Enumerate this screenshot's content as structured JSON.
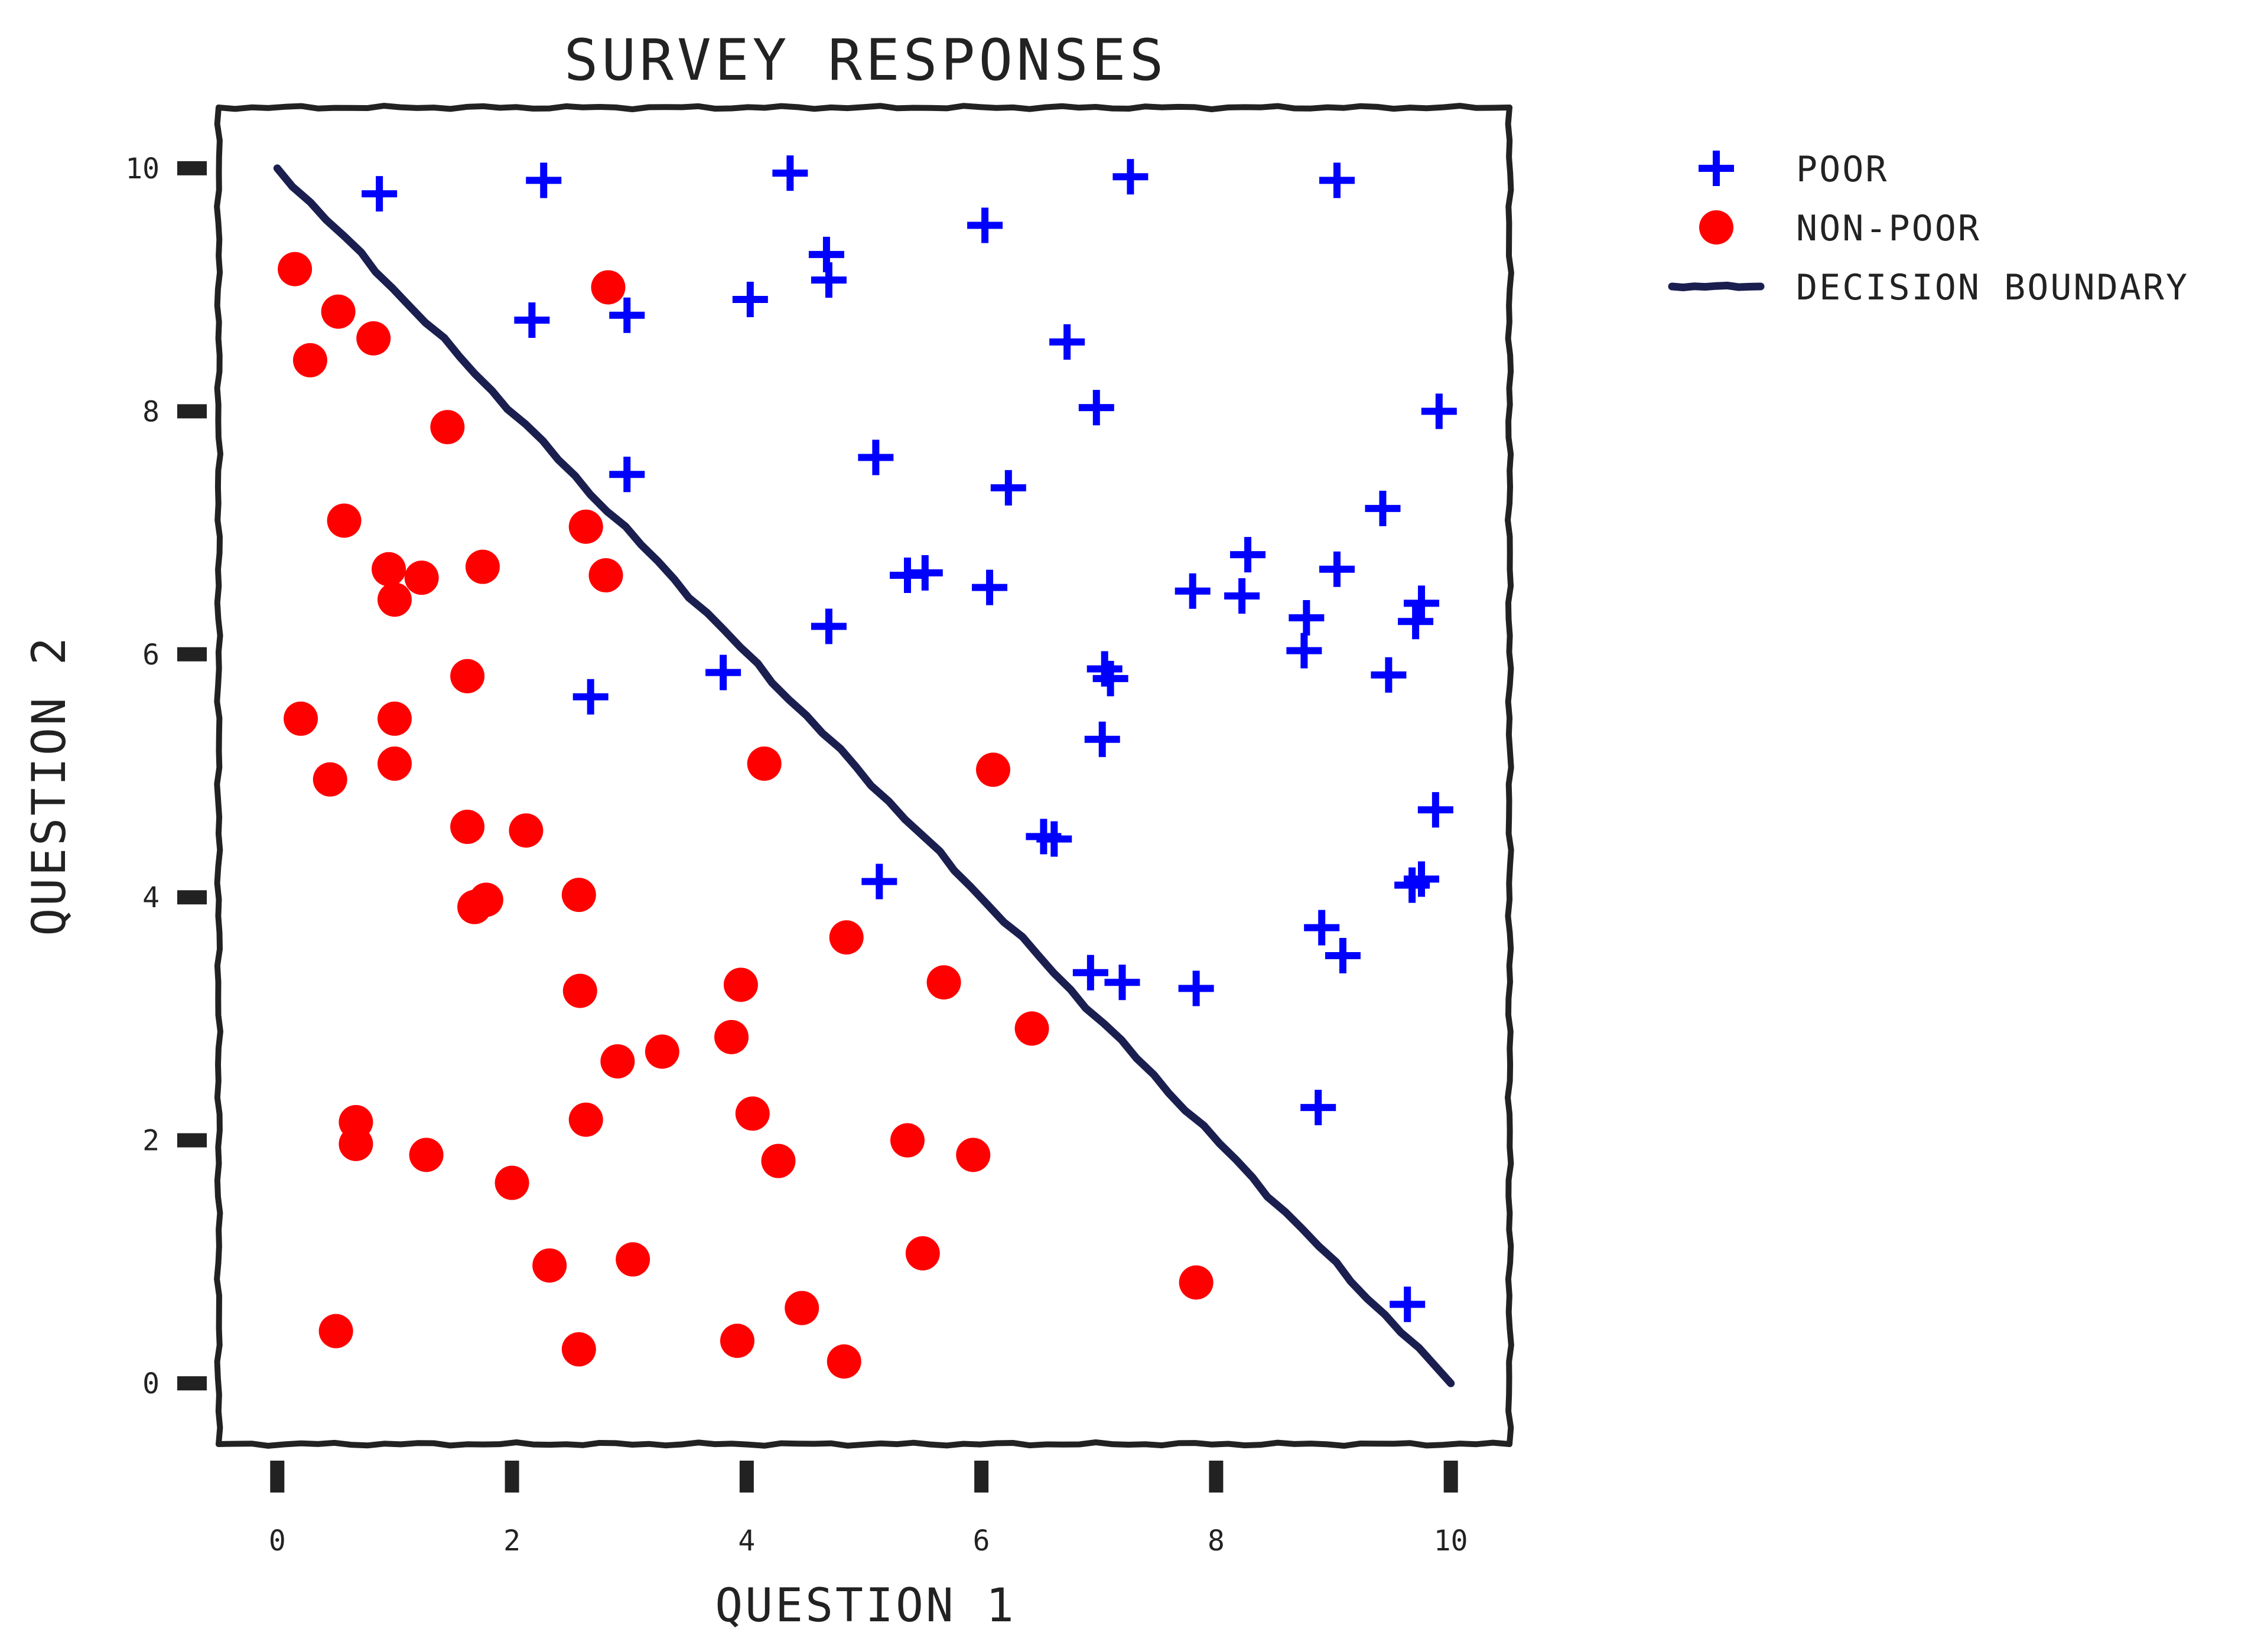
{
  "colors": {
    "poor": "#0000ff",
    "non_poor": "#ff0000",
    "boundary": "#1a1f4f",
    "frame": "#222222"
  },
  "chart_data": {
    "type": "scatter",
    "title": "SURVEY RESPONSES",
    "xlabel": "QUESTION 1",
    "ylabel": "QUESTION 2",
    "xlim": [
      -0.5,
      10.5
    ],
    "ylim": [
      -0.5,
      10.5
    ],
    "xticks": [
      0,
      2,
      4,
      6,
      8,
      10
    ],
    "yticks": [
      0,
      2,
      4,
      6,
      8,
      10
    ],
    "grid": false,
    "legend_position": "outside-top-right",
    "series": [
      {
        "name": "POOR",
        "marker": "plus",
        "color": "#0000ff",
        "points": [
          [
            0.87,
            9.79
          ],
          [
            2.27,
            9.9
          ],
          [
            4.37,
            9.96
          ],
          [
            7.27,
            9.93
          ],
          [
            9.03,
            9.9
          ],
          [
            4.68,
            9.29
          ],
          [
            4.7,
            9.08
          ],
          [
            6.03,
            9.53
          ],
          [
            2.17,
            8.75
          ],
          [
            2.98,
            8.79
          ],
          [
            4.03,
            8.92
          ],
          [
            6.73,
            8.57
          ],
          [
            6.98,
            8.03
          ],
          [
            9.9,
            8.0
          ],
          [
            5.1,
            7.62
          ],
          [
            2.98,
            7.48
          ],
          [
            6.23,
            7.37
          ],
          [
            9.42,
            7.2
          ],
          [
            5.37,
            6.65
          ],
          [
            5.52,
            6.67
          ],
          [
            6.07,
            6.55
          ],
          [
            8.27,
            6.82
          ],
          [
            7.8,
            6.52
          ],
          [
            8.22,
            6.48
          ],
          [
            9.03,
            6.7
          ],
          [
            9.75,
            6.42
          ],
          [
            9.7,
            6.27
          ],
          [
            8.77,
            6.3
          ],
          [
            8.75,
            6.03
          ],
          [
            4.7,
            6.23
          ],
          [
            3.8,
            5.85
          ],
          [
            7.05,
            5.88
          ],
          [
            7.1,
            5.8
          ],
          [
            9.47,
            5.83
          ],
          [
            2.67,
            5.65
          ],
          [
            7.03,
            5.3
          ],
          [
            9.87,
            4.72
          ],
          [
            6.53,
            4.5
          ],
          [
            6.62,
            4.48
          ],
          [
            5.13,
            4.13
          ],
          [
            9.67,
            4.1
          ],
          [
            9.75,
            4.15
          ],
          [
            8.9,
            3.75
          ],
          [
            9.08,
            3.52
          ],
          [
            6.93,
            3.38
          ],
          [
            7.2,
            3.3
          ],
          [
            7.83,
            3.25
          ],
          [
            8.87,
            2.27
          ],
          [
            9.63,
            0.65
          ]
        ]
      },
      {
        "name": "NON-POOR",
        "marker": "circle",
        "color": "#ff0000",
        "points": [
          [
            0.15,
            9.17
          ],
          [
            0.52,
            8.82
          ],
          [
            0.82,
            8.6
          ],
          [
            0.28,
            8.42
          ],
          [
            2.82,
            9.02
          ],
          [
            1.45,
            7.87
          ],
          [
            0.57,
            7.1
          ],
          [
            2.63,
            7.05
          ],
          [
            0.95,
            6.7
          ],
          [
            1.23,
            6.63
          ],
          [
            1.75,
            6.72
          ],
          [
            1.0,
            6.45
          ],
          [
            2.8,
            6.65
          ],
          [
            1.62,
            5.82
          ],
          [
            0.2,
            5.47
          ],
          [
            1.0,
            5.47
          ],
          [
            1.0,
            5.1
          ],
          [
            4.15,
            5.1
          ],
          [
            6.1,
            5.05
          ],
          [
            0.45,
            4.97
          ],
          [
            1.62,
            4.58
          ],
          [
            2.12,
            4.55
          ],
          [
            1.68,
            3.92
          ],
          [
            1.78,
            3.98
          ],
          [
            2.57,
            4.02
          ],
          [
            4.85,
            3.67
          ],
          [
            2.58,
            3.23
          ],
          [
            3.95,
            3.28
          ],
          [
            5.68,
            3.3
          ],
          [
            3.87,
            2.85
          ],
          [
            6.43,
            2.92
          ],
          [
            2.9,
            2.65
          ],
          [
            3.28,
            2.73
          ],
          [
            0.67,
            2.15
          ],
          [
            0.67,
            1.97
          ],
          [
            1.27,
            1.88
          ],
          [
            2.63,
            2.17
          ],
          [
            4.05,
            2.22
          ],
          [
            4.27,
            1.83
          ],
          [
            5.37,
            2.0
          ],
          [
            5.93,
            1.88
          ],
          [
            2.0,
            1.65
          ],
          [
            2.32,
            0.97
          ],
          [
            3.03,
            1.02
          ],
          [
            5.5,
            1.07
          ],
          [
            7.83,
            0.83
          ],
          [
            0.5,
            0.43
          ],
          [
            2.57,
            0.28
          ],
          [
            3.92,
            0.35
          ],
          [
            4.47,
            0.62
          ],
          [
            4.83,
            0.18
          ]
        ]
      },
      {
        "name": "DECISION BOUNDARY",
        "marker": "line",
        "color": "#1a1f4f",
        "points": [
          [
            0,
            10
          ],
          [
            10,
            0
          ]
        ]
      }
    ]
  }
}
